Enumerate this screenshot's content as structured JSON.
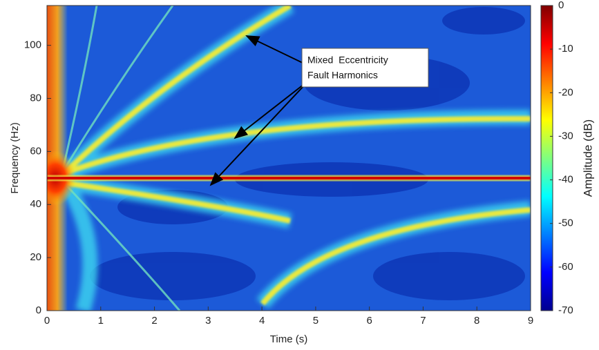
{
  "chart_data": {
    "type": "spectrogram",
    "xlabel": "Time (s)",
    "ylabel": "Frequency (Hz)",
    "xlim": [
      0,
      9
    ],
    "xticks": [
      0,
      1,
      2,
      3,
      4,
      5,
      6,
      7,
      8,
      9
    ],
    "ylim": [
      0,
      115
    ],
    "yticks": [
      0,
      20,
      40,
      60,
      80,
      100
    ],
    "colormap": "jet",
    "colorbar": {
      "label": "Amplitude (dB)",
      "lim": [
        -70,
        0
      ],
      "ticks": [
        0,
        -10,
        -20,
        -30,
        -40,
        -50,
        -60,
        -70
      ]
    },
    "annotation": [
      "Mixed  Eccentricity",
      "Fault Harmonics"
    ]
  }
}
